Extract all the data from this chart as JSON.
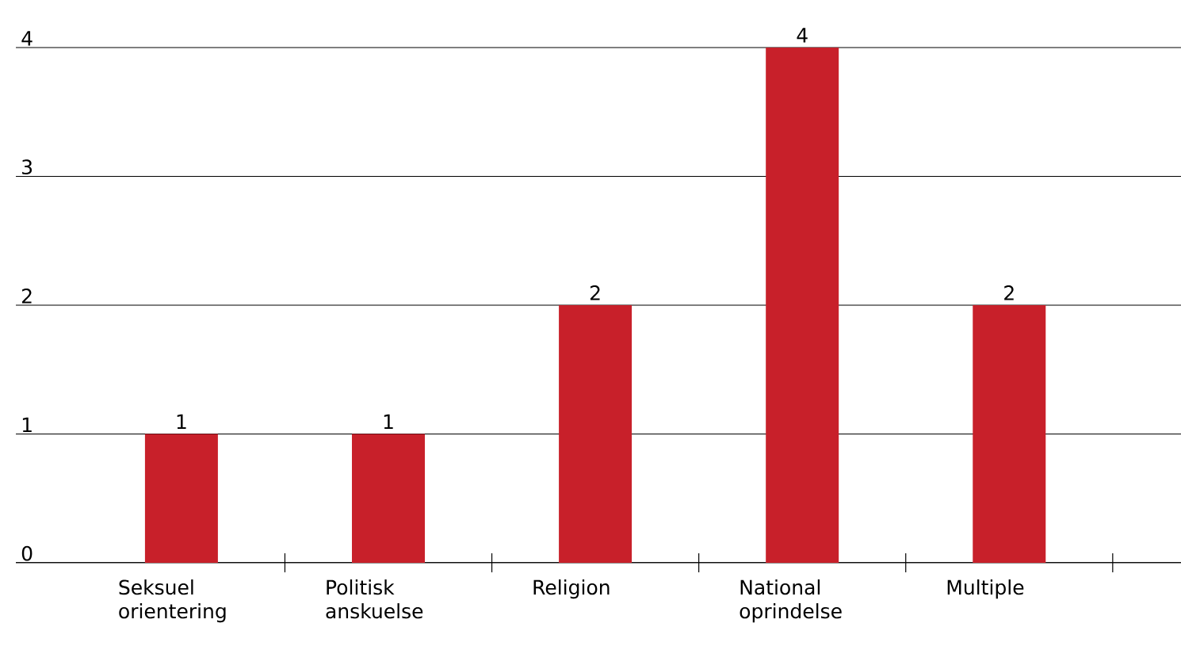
{
  "chart_data": {
    "type": "bar",
    "categories": [
      "Seksuel orientering",
      "Politisk anskuelse",
      "Religion",
      "National oprindelse",
      "Multiple"
    ],
    "values": [
      1,
      1,
      2,
      4,
      2
    ],
    "color": "#c8202a",
    "ylim": [
      0,
      4
    ],
    "yticks": [
      0,
      1,
      2,
      3,
      4
    ],
    "grid": "y",
    "data_labels": true
  }
}
